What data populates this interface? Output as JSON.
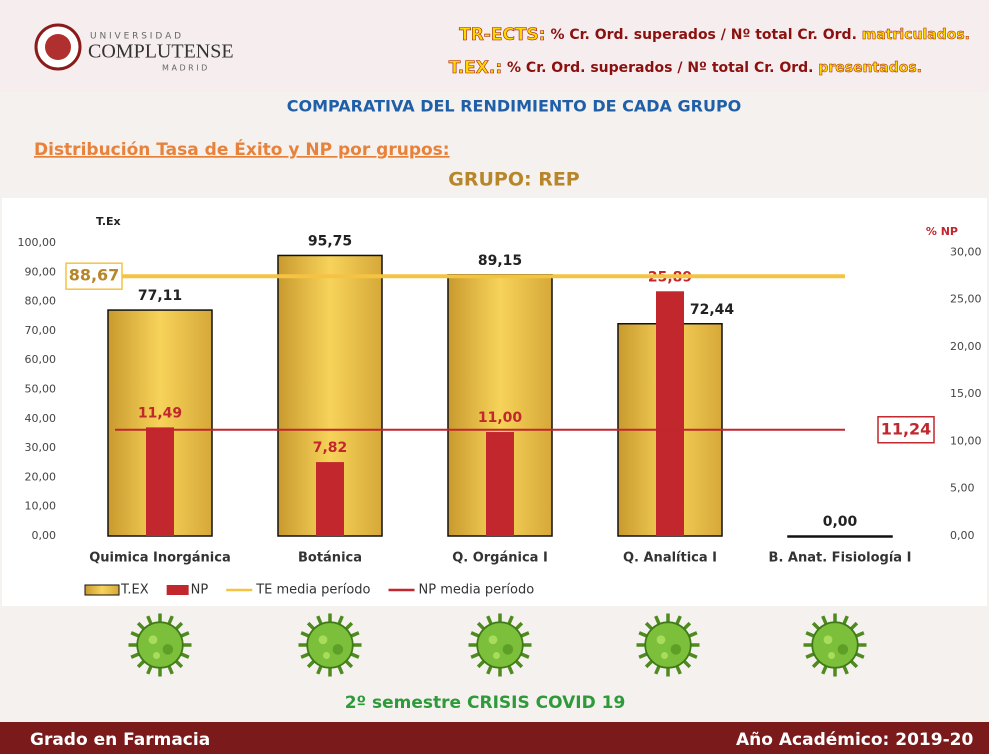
{
  "logo": {
    "line1": "U N I V E R S I D A D",
    "line2": "COMPLUTENSE",
    "line3": "M A D R I D"
  },
  "definitions": [
    {
      "term": "TR-ECTS:",
      "text": "% Cr. Ord. superados / Nº total Cr. Ord.",
      "highlight": "matriculados."
    },
    {
      "term": "T.EX.:",
      "text": "% Cr. Ord. superados / Nº total Cr. Ord.",
      "highlight": "presentados."
    }
  ],
  "heading": "COMPARATIVA DEL RENDIMIENTO DE CADA GRUPO",
  "subheading": "Distribución Tasa de Éxito y NP por grupos:",
  "covid_note": "2º semestre CRISIS COVID 19",
  "footer": {
    "left": "Grado en Farmacia",
    "right": "Año Académico: 2019-20"
  },
  "chart_data": {
    "type": "bar",
    "title": "GRUPO: REP",
    "y_label": "T.Ex",
    "y2_label": "% NP",
    "categories": [
      "Quimica Inorgánica",
      "Botánica",
      "Q. Orgánica I",
      "Q. Analítica I",
      "B. Anat. Fisiología I"
    ],
    "series": [
      {
        "name": "T.EX",
        "color": "#f2c53d",
        "values": [
          77.11,
          95.75,
          89.15,
          72.44,
          0
        ],
        "value_labels": [
          "77,11",
          "95,75",
          "89,15",
          "72,44",
          "0,00"
        ]
      },
      {
        "name": "NP",
        "color": "#c1272d",
        "axis": "y2",
        "values": [
          11.49,
          7.82,
          11.0,
          25.89,
          null
        ],
        "value_labels": [
          "11,49",
          "7,82",
          "11,00",
          "25,89",
          null
        ]
      }
    ],
    "reference_lines": [
      {
        "name": "TE media período",
        "color": "#f5c342",
        "value": 88.67,
        "value_label": "88,67"
      },
      {
        "name": "NP media período",
        "color": "#c1272d",
        "axis": "y2",
        "value": 11.24,
        "value_label": "11,24"
      }
    ],
    "ylim": [
      0,
      100
    ],
    "yticks": [
      {
        "value": 0,
        "label": "0,00"
      },
      {
        "value": 10,
        "label": "10,00"
      },
      {
        "value": 20,
        "label": "20,00"
      },
      {
        "value": 30,
        "label": "30,00"
      },
      {
        "value": 40,
        "label": "40,00"
      },
      {
        "value": 50,
        "label": "50,00"
      },
      {
        "value": 60,
        "label": "60,00"
      },
      {
        "value": 70,
        "label": "70,00"
      },
      {
        "value": 80,
        "label": "80,00"
      },
      {
        "value": 90,
        "label": "90,00"
      },
      {
        "value": 100,
        "label": "100,00"
      }
    ],
    "y2lim": [
      0,
      31
    ],
    "y2ticks": [
      {
        "value": 0,
        "label": "0,00"
      },
      {
        "value": 5,
        "label": "5,00"
      },
      {
        "value": 10,
        "label": "10,00"
      },
      {
        "value": 15,
        "label": "15,00"
      },
      {
        "value": 20,
        "label": "20,00"
      },
      {
        "value": 25,
        "label": "25,00"
      },
      {
        "value": 30,
        "label": "30,00"
      }
    ]
  }
}
